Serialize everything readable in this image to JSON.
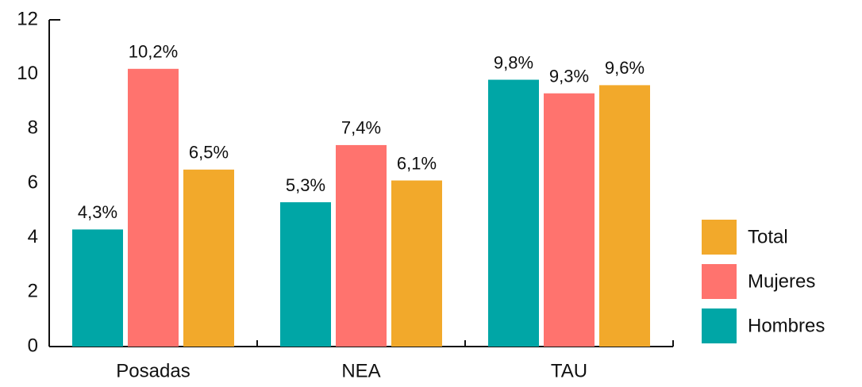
{
  "chart_data": {
    "type": "bar",
    "categories": [
      "Posadas",
      "NEA",
      "TAU"
    ],
    "series": [
      {
        "name": "Hombres",
        "color": "#00a6a6",
        "values": [
          4.3,
          5.3,
          9.8
        ],
        "value_labels": [
          "4,3%",
          "5,3%",
          "9,8%"
        ]
      },
      {
        "name": "Mujeres",
        "color": "#ff736e",
        "values": [
          10.2,
          7.4,
          9.3
        ],
        "value_labels": [
          "10,2%",
          "7,4%",
          "9,3%"
        ]
      },
      {
        "name": "Total",
        "color": "#f2a92b",
        "values": [
          6.5,
          6.1,
          9.6
        ],
        "value_labels": [
          "6,5%",
          "6,1%",
          "9,6%"
        ]
      }
    ],
    "ylim": [
      0,
      12
    ],
    "yticks": [
      0,
      2,
      4,
      6,
      8,
      10,
      12
    ],
    "grid": false,
    "legend": "right"
  }
}
